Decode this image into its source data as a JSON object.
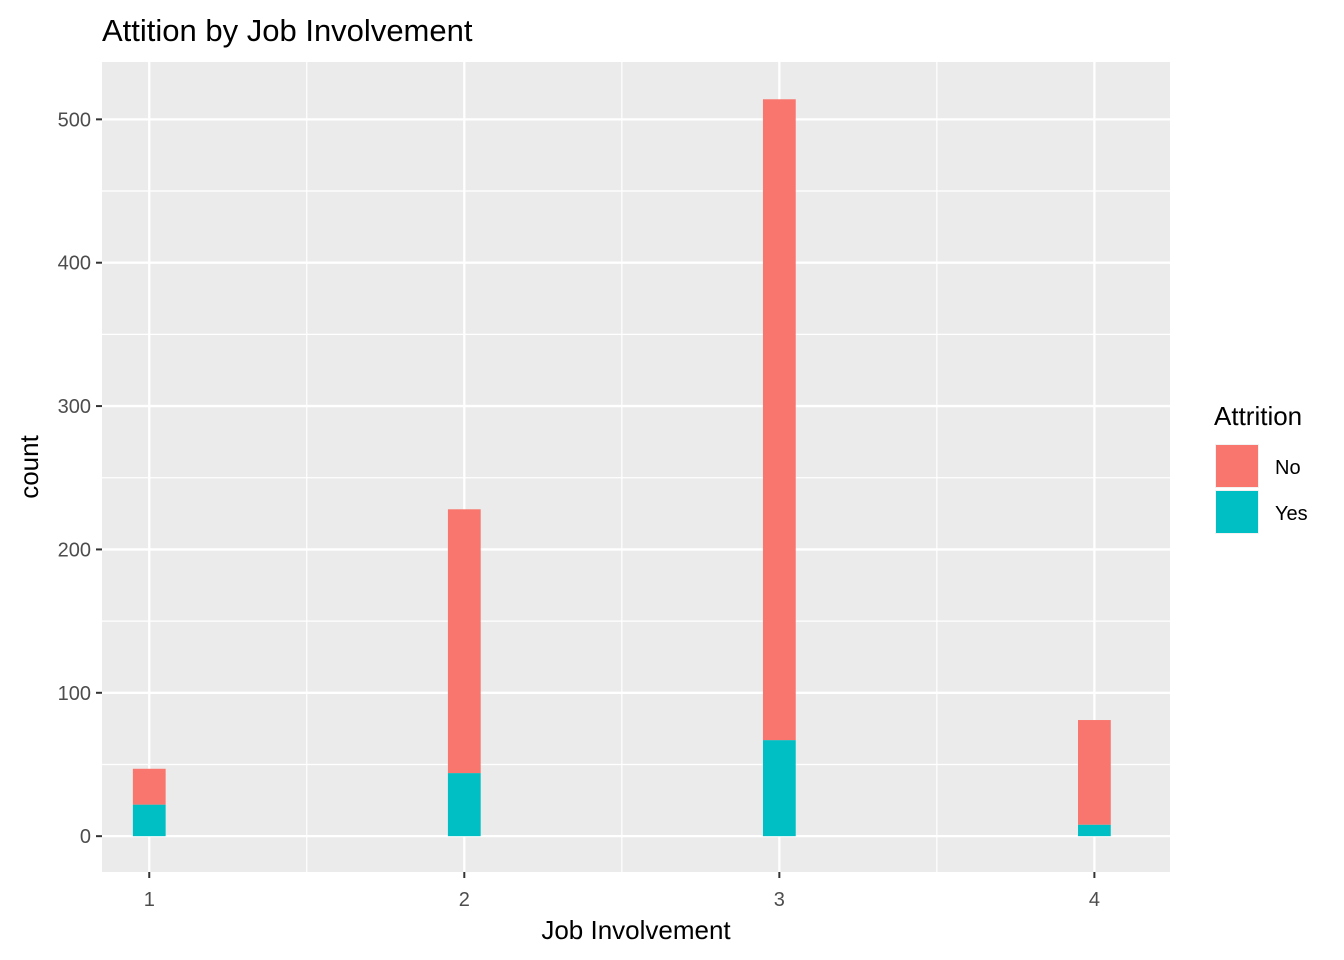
{
  "chart_data": {
    "type": "bar",
    "stacked": true,
    "title": "Attition by Job Involvement",
    "xlabel": "Job Involvement",
    "ylabel": "count",
    "categories": [
      "1",
      "2",
      "3",
      "4"
    ],
    "x": [
      1,
      2,
      3,
      4
    ],
    "xlim": [
      0.85,
      4.24
    ],
    "ylim": [
      -25,
      540
    ],
    "yticks": [
      0,
      100,
      200,
      300,
      400,
      500
    ],
    "grid": true,
    "legend": {
      "title": "Attrition",
      "placement": "right"
    },
    "series": [
      {
        "name": "Yes",
        "values": [
          22,
          44,
          67,
          8
        ],
        "color": "#00BFC4"
      },
      {
        "name": "No",
        "values": [
          25,
          184,
          447,
          73
        ],
        "color": "#F8766D"
      }
    ],
    "panel_background": "#EBEBEB",
    "grid_color": "#FFFFFF"
  }
}
